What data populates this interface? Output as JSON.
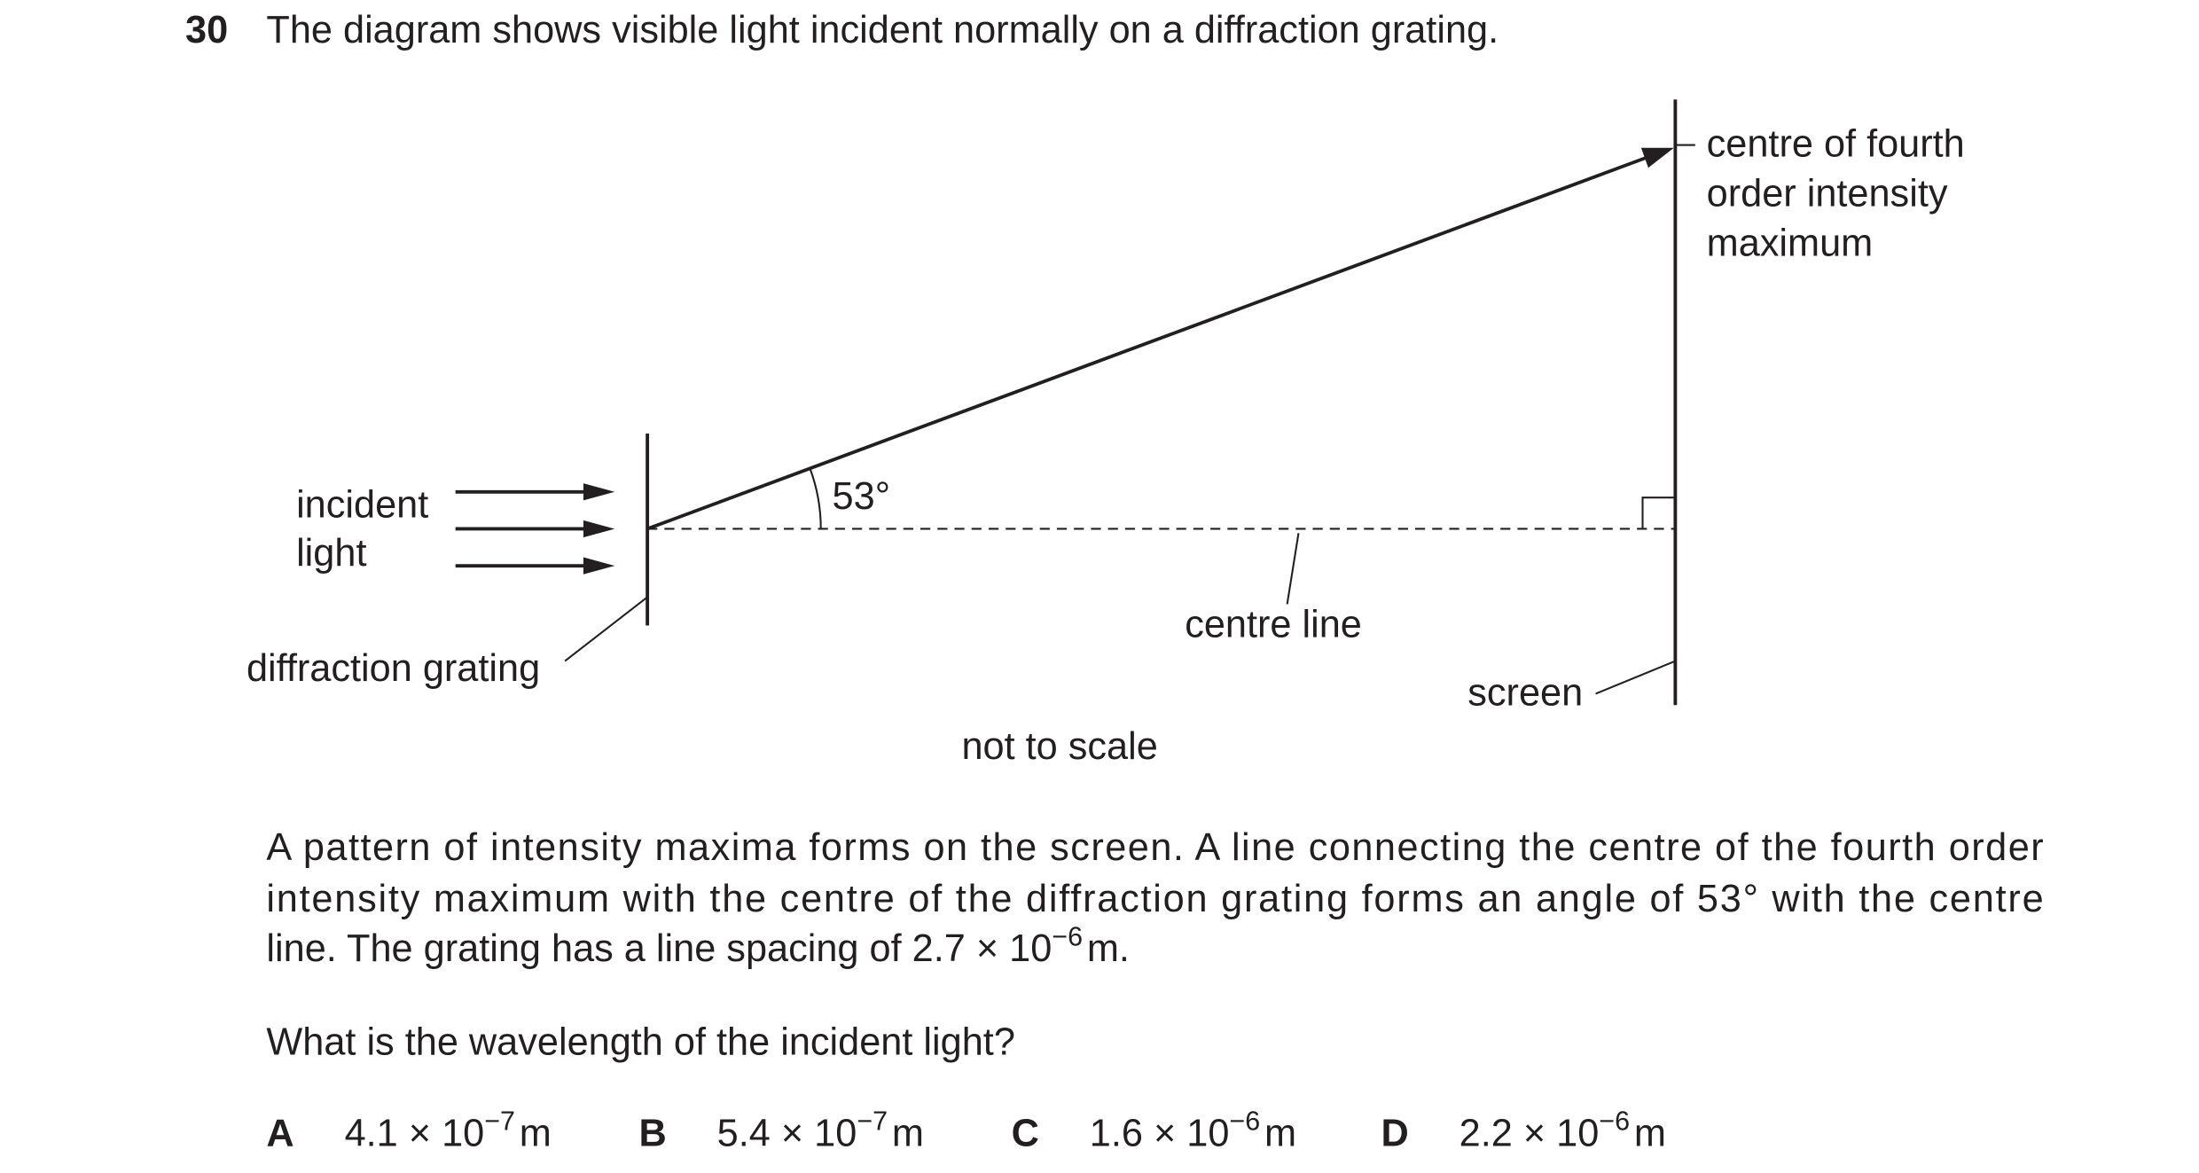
{
  "question": {
    "number": "30",
    "stem": "The diagram shows visible light incident normally on a diffraction grating."
  },
  "diagram": {
    "incident_light": [
      "incident",
      "light"
    ],
    "diffraction_grating": "diffraction grating",
    "angle": "53°",
    "centre_line": "centre line",
    "screen": "screen",
    "maximum_label": [
      "centre of fourth",
      "order intensity",
      "maximum"
    ],
    "note": "not to scale"
  },
  "paragraph": {
    "lines": [
      "A pattern of intensity maxima forms on the screen. A line connecting the centre of the fourth order",
      "intensity maximum with the centre of the diffraction grating forms an angle of 53° with the centre"
    ],
    "last_line": {
      "text": "line. The grating has a line spacing of ",
      "base": "2.7 × 10",
      "exponent": "−6",
      "unit": "m",
      "end": "."
    }
  },
  "prompt": "What is the wavelength of the incident light?",
  "options": [
    {
      "letter": "A",
      "base": "4.1 × 10",
      "exponent": "−7",
      "unit": "m"
    },
    {
      "letter": "B",
      "base": "5.4 × 10",
      "exponent": "−7",
      "unit": "m"
    },
    {
      "letter": "C",
      "base": "1.6 × 10",
      "exponent": "−6",
      "unit": "m"
    },
    {
      "letter": "D",
      "base": "2.2 × 10",
      "exponent": "−6",
      "unit": "m"
    }
  ]
}
